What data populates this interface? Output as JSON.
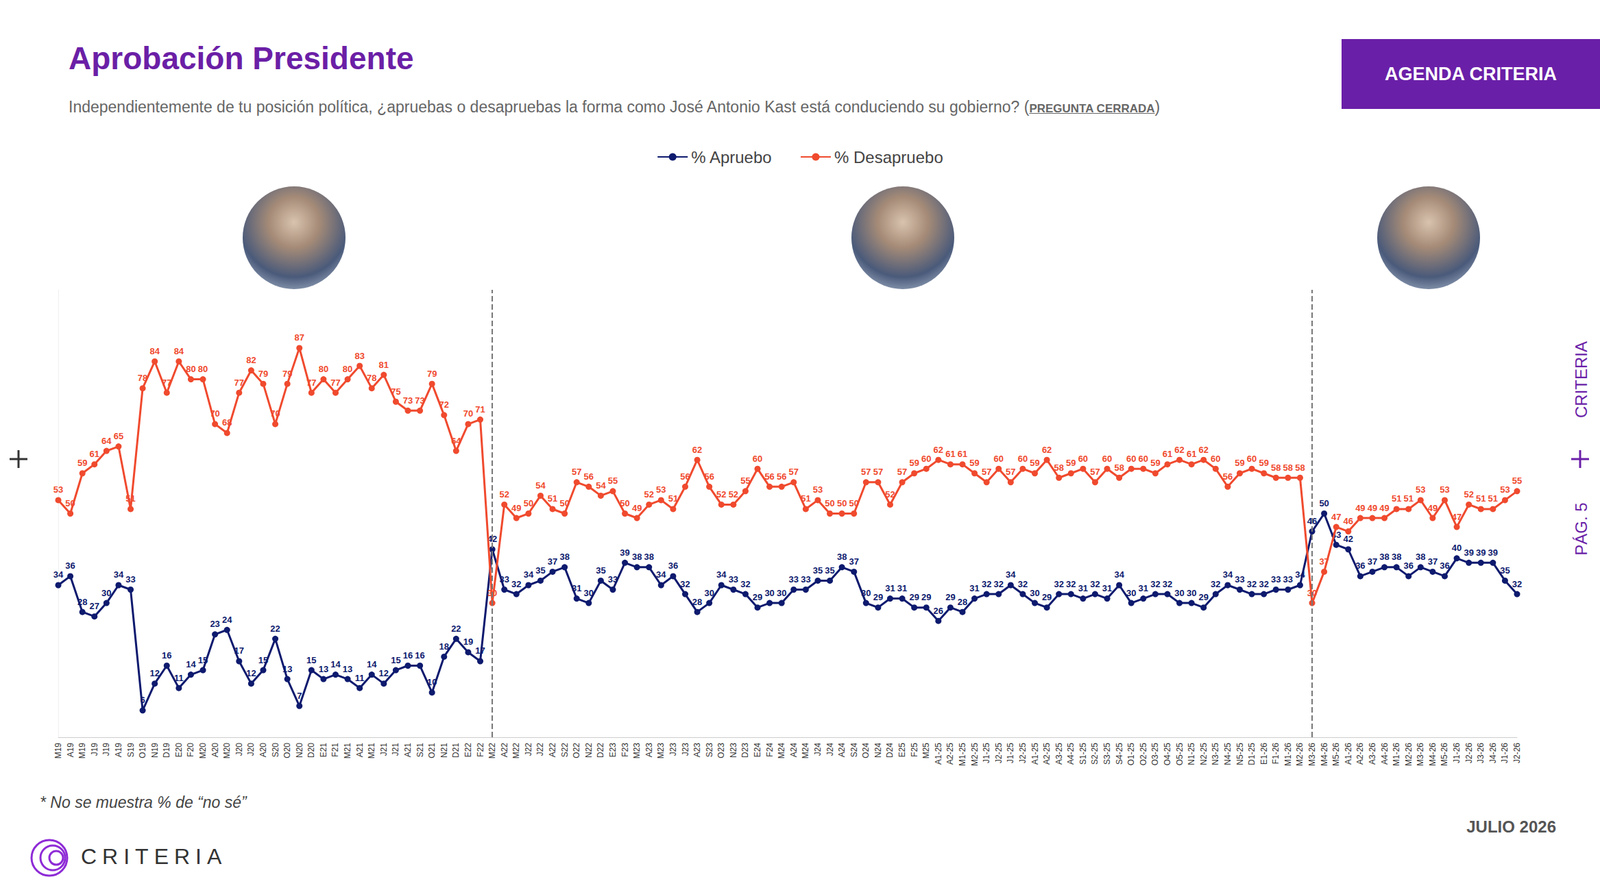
{
  "chart_data": {
    "type": "line",
    "title": "Aprobación Presidente",
    "subtitle": "Independientemente de tu posición política, ¿apruebas o desapruebas la forma como José Antonio Kast está conduciendo su gobierno? (PREGUNTA CERRADA)",
    "annotations": [
      "AGENDA CRITERIA",
      "CRITERIA",
      "PÁG. 5",
      "* No se muestra % de “no sé”",
      "CRITERIA",
      "JULIO 2026"
    ],
    "categories": [
      "M19",
      "A19",
      "M19",
      "J19",
      "J19",
      "A19",
      "S19",
      "O19",
      "N19",
      "D19",
      "E20",
      "F20",
      "M20",
      "A20",
      "M20",
      "J20",
      "J20",
      "A20",
      "S20",
      "O20",
      "N20",
      "D20",
      "E21",
      "F21",
      "M21",
      "A21",
      "M21",
      "J21",
      "J21",
      "A21",
      "S21",
      "O21",
      "N21",
      "D21",
      "E22",
      "F22",
      "M22",
      "A22",
      "M22",
      "J22",
      "J22",
      "A22",
      "S22",
      "O22",
      "N22",
      "D22",
      "E23",
      "F23",
      "M23",
      "A23",
      "M23",
      "J23",
      "J23",
      "A23",
      "S23",
      "O23",
      "N23",
      "D23",
      "E24",
      "F24",
      "M24",
      "A24",
      "M24",
      "J24",
      "J24",
      "A24",
      "S24",
      "O24",
      "N24",
      "D24",
      "E25",
      "F25",
      "M25",
      "A1-25",
      "A2-25",
      "M1-25",
      "M2-25",
      "J1-25",
      "J2-25",
      "J1-25",
      "J2-25",
      "A1-25",
      "A2-25",
      "A3-25",
      "A4-25",
      "S1-25",
      "S2-25",
      "S3-25",
      "S4-25",
      "O1-25",
      "O2-25",
      "O3-25",
      "O4-25",
      "O5-25",
      "N1-25",
      "N2-25",
      "N3-25",
      "N4-25",
      "N5-25",
      "D1-25",
      "E1-26",
      "F1-26",
      "M1-26",
      "M2-26",
      "M3-26",
      "M4-26",
      "M5-26",
      "A1-26",
      "A2-26",
      "A3-26",
      "A4-26",
      "M1-26",
      "M2-26",
      "M3-26",
      "M4-26",
      "M5-26",
      "J1-26",
      "J2-26",
      "J3-26",
      "J4-26",
      "J1-26",
      "J2-26"
    ],
    "series": [
      {
        "name": "% Apruebo",
        "color": "#0d1a6e",
        "marker": "circle",
        "values": [
          34,
          36,
          28,
          27,
          30,
          34,
          33,
          6,
          12,
          16,
          11,
          14,
          15,
          23,
          24,
          17,
          12,
          15,
          22,
          13,
          7,
          15,
          13,
          14,
          13,
          11,
          14,
          12,
          15,
          16,
          16,
          10,
          18,
          22,
          19,
          17,
          42,
          33,
          32,
          34,
          35,
          37,
          38,
          31,
          30,
          35,
          33,
          39,
          38,
          38,
          34,
          36,
          32,
          28,
          30,
          34,
          33,
          32,
          29,
          30,
          30,
          33,
          33,
          35,
          35,
          38,
          37,
          30,
          29,
          31,
          31,
          29,
          29,
          26,
          29,
          28,
          31,
          32,
          32,
          34,
          32,
          30,
          29,
          32,
          32,
          31,
          32,
          31,
          34,
          30,
          31,
          32,
          32,
          30,
          30,
          29,
          32,
          34,
          33,
          32,
          32,
          33,
          33,
          34,
          46,
          50,
          43,
          42,
          36,
          37,
          38,
          38,
          36,
          38,
          37,
          36,
          40,
          39,
          39,
          39,
          35,
          32
        ]
      },
      {
        "name": "% Desapruebo",
        "color": "#f04a2e",
        "marker": "circle",
        "values": [
          53,
          50,
          59,
          61,
          64,
          65,
          51,
          78,
          84,
          77,
          84,
          80,
          80,
          70,
          68,
          77,
          82,
          79,
          70,
          79,
          87,
          77,
          80,
          77,
          80,
          83,
          78,
          81,
          75,
          73,
          73,
          79,
          72,
          64,
          70,
          71,
          30,
          52,
          49,
          50,
          54,
          51,
          50,
          57,
          56,
          54,
          55,
          50,
          49,
          52,
          53,
          51,
          56,
          62,
          56,
          52,
          52,
          55,
          60,
          56,
          56,
          57,
          51,
          53,
          50,
          50,
          50,
          57,
          57,
          52,
          57,
          59,
          60,
          62,
          61,
          61,
          59,
          57,
          60,
          57,
          60,
          59,
          62,
          58,
          59,
          60,
          57,
          60,
          58,
          60,
          60,
          59,
          61,
          62,
          61,
          62,
          60,
          56,
          59,
          60,
          59,
          58,
          58,
          58,
          30,
          37,
          47,
          46,
          49,
          49,
          49,
          51,
          51,
          53,
          49,
          53,
          47,
          52,
          51,
          51,
          53,
          55
        ]
      }
    ],
    "dividers": [
      36,
      104
    ],
    "ylim": [
      0,
      100
    ],
    "tick_labels": "x",
    "grid": false,
    "legend": "top",
    "data_labels": true
  }
}
